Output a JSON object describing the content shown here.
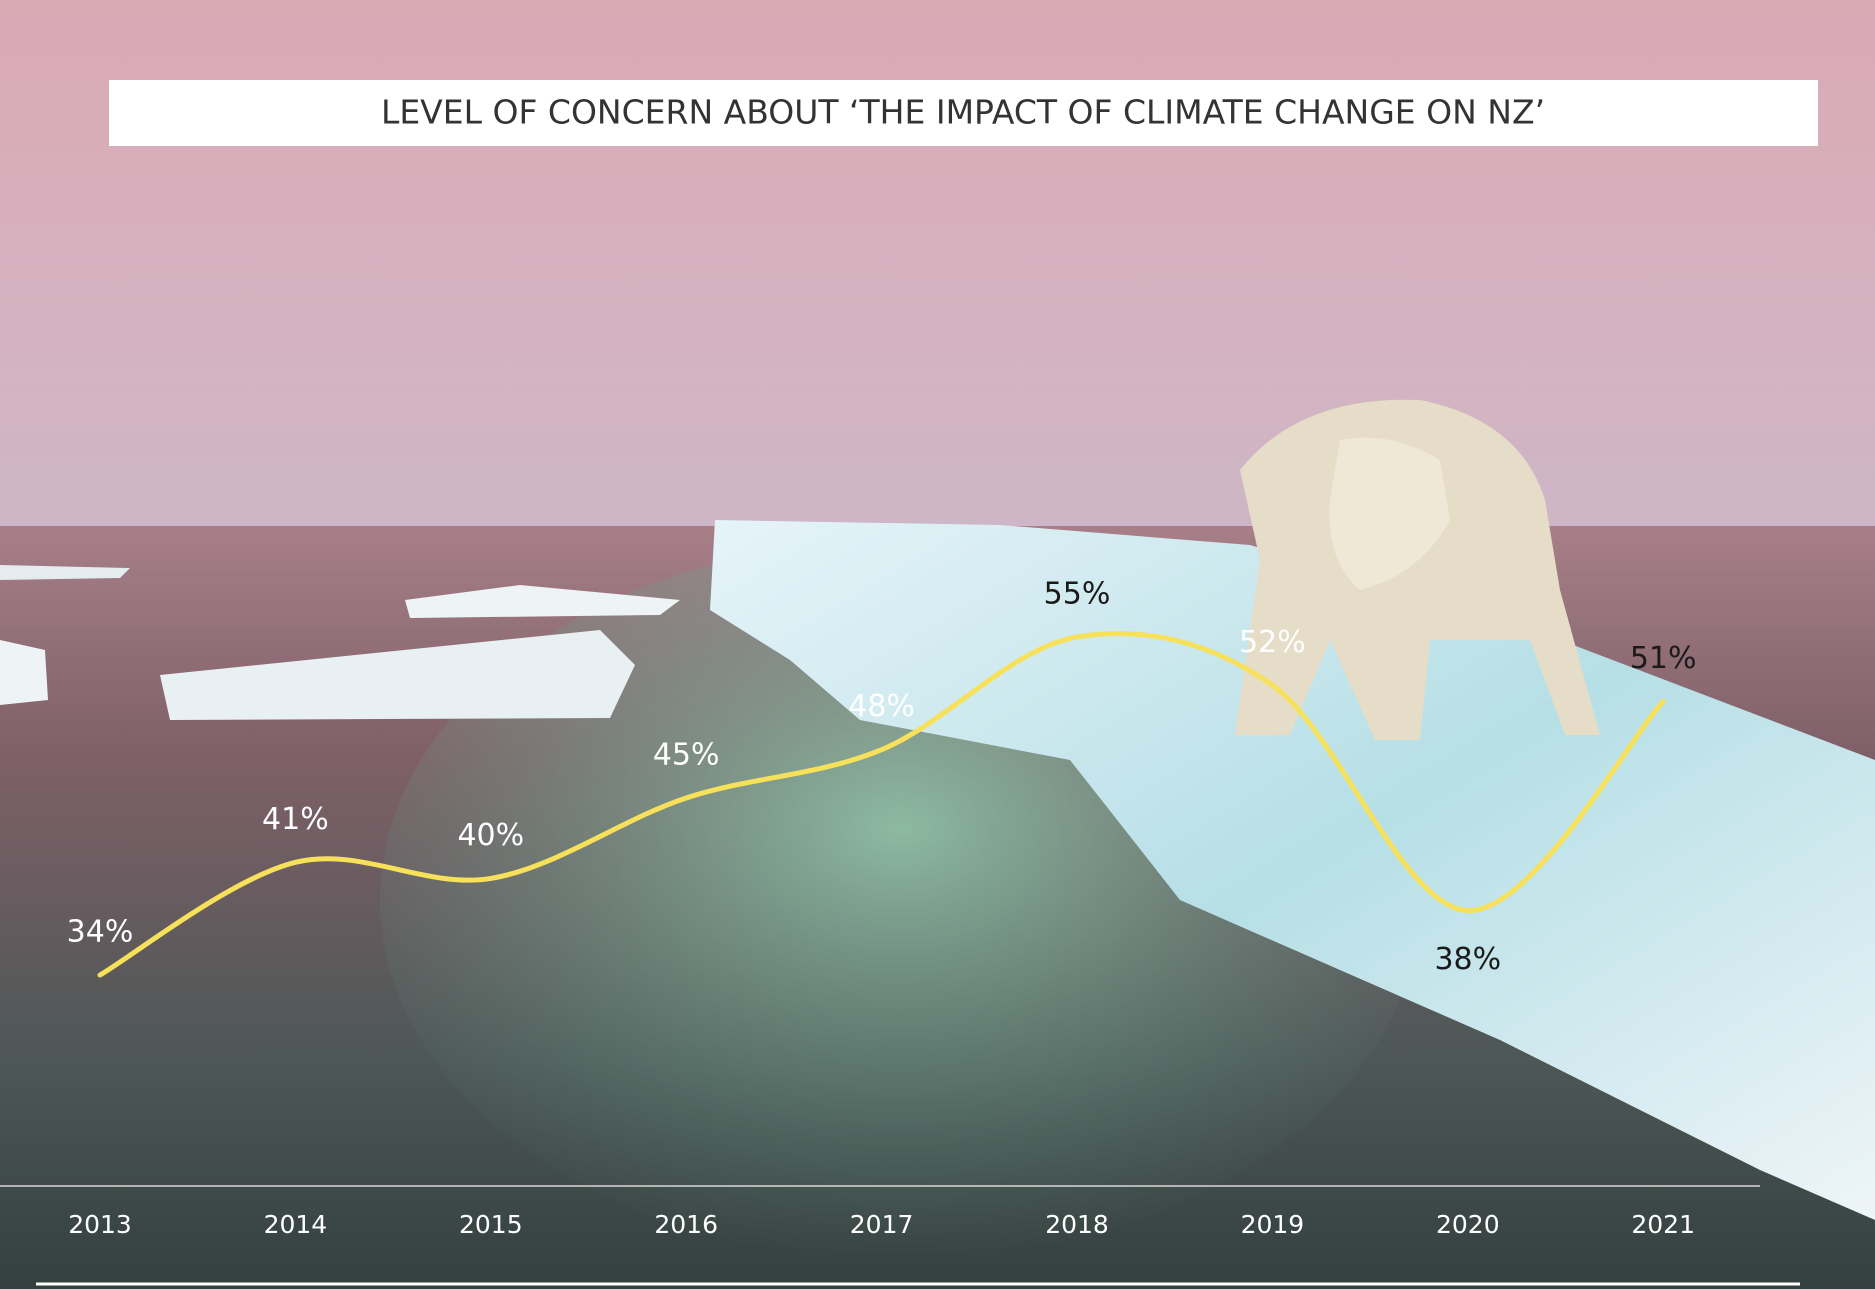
{
  "chart_data": {
    "type": "line",
    "title": "LEVEL OF CONCERN ABOUT ‘THE IMPACT OF CLIMATE CHANGE ON NZ’",
    "categories": [
      "2013",
      "2014",
      "2015",
      "2016",
      "2017",
      "2018",
      "2019",
      "2020",
      "2021"
    ],
    "values": [
      34,
      41,
      40,
      45,
      48,
      55,
      52,
      38,
      51
    ],
    "value_labels": [
      "34%",
      "41%",
      "40%",
      "45%",
      "48%",
      "55%",
      "52%",
      "38%",
      "51%"
    ],
    "color": "#f7e15a"
  }
}
